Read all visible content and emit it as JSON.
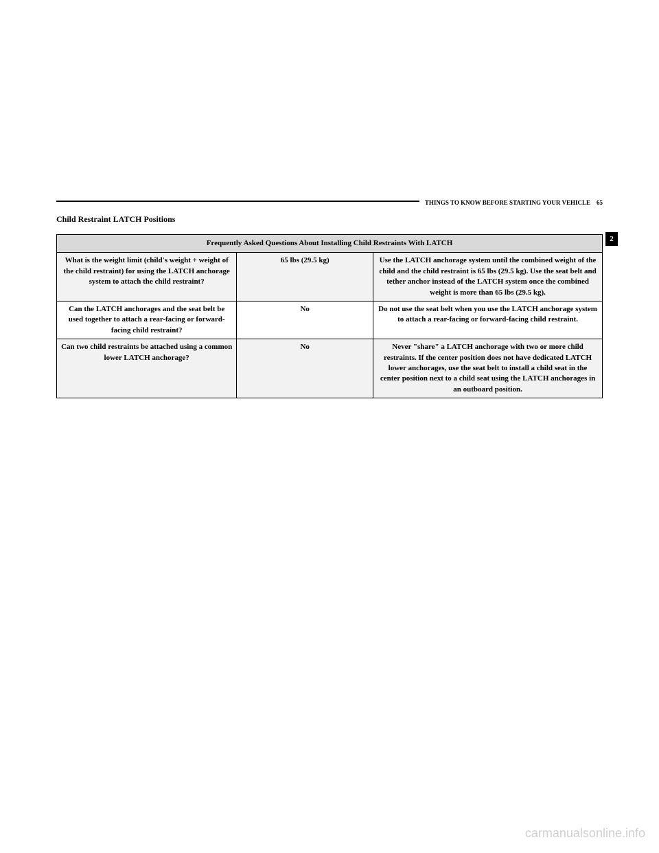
{
  "header": {
    "chapter_text": "THINGS TO KNOW BEFORE STARTING YOUR VEHICLE",
    "page_number": "65"
  },
  "section_title": "Child Restraint LATCH Positions",
  "section_tab": "2",
  "table": {
    "header": "Frequently Asked Questions About Installing Child Restraints With LATCH",
    "rows": [
      {
        "question": "What is the weight limit (child's weight + weight of the child restraint) for using the LATCH anchorage system to attach the child restraint?",
        "answer": "65 lbs (29.5 kg)",
        "explanation": "Use the LATCH anchorage system until the combined weight of the child and the child restraint is 65 lbs (29.5 kg). Use the seat belt and tether anchor instead of the LATCH system once the combined weight is more than 65 lbs (29.5 kg)."
      },
      {
        "question": "Can the LATCH anchorages and the seat belt be used together to attach a rear-facing or forward-facing child restraint?",
        "answer": "No",
        "explanation": "Do not use the seat belt when you use the LATCH anchorage system to attach a rear-facing or forward-facing child restraint."
      },
      {
        "question": "Can two child restraints be attached using a common lower LATCH anchorage?",
        "answer": "No",
        "explanation": "Never \"share\" a LATCH anchorage with two or more child restraints. If the center position does not have dedicated LATCH lower anchorages, use the seat belt to install a child seat in the center position next to a child seat using the LATCH anchorages in an outboard position."
      }
    ]
  },
  "watermark": "carmanualsonline.info"
}
